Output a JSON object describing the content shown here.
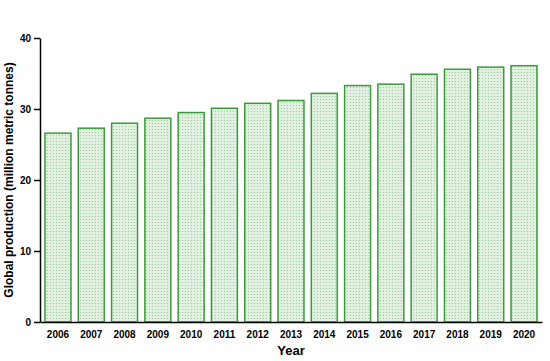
{
  "chart_data": {
    "type": "bar",
    "x_label": "Year",
    "y_label": "Global production (million metric tonnes)",
    "categories": [
      "2006",
      "2007",
      "2008",
      "2009",
      "2010",
      "2011",
      "2012",
      "2013",
      "2014",
      "2015",
      "2016",
      "2017",
      "2018",
      "2019",
      "2020"
    ],
    "values": [
      26.6,
      27.3,
      28.0,
      28.7,
      29.5,
      30.1,
      30.8,
      31.2,
      32.2,
      33.3,
      33.5,
      34.9,
      35.6,
      35.9,
      36.1
    ],
    "color": "#3c9a3c",
    "ylim": [
      0,
      40
    ],
    "yticks": [
      0,
      10,
      20,
      30,
      40
    ],
    "grid": false
  }
}
